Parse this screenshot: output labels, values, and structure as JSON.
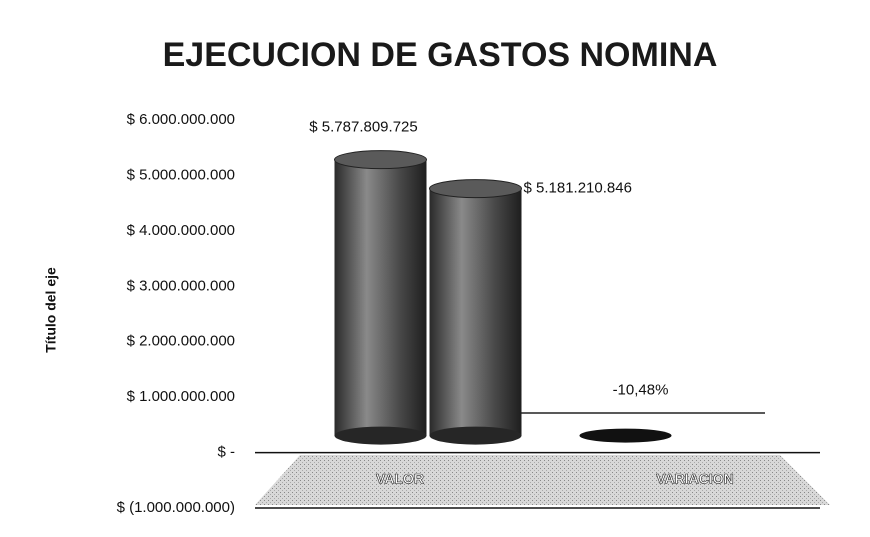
{
  "chart_data": {
    "type": "bar3d",
    "title": "EJECUCION DE GASTOS NOMINA",
    "y_label": "Título del eje",
    "categories": [
      "VALOR",
      "VARIACION"
    ],
    "series": [
      {
        "color": "#3a3a3a",
        "values": [
          5787809725,
          -0.1048
        ],
        "value_labels": [
          "$ 5.787.809.725",
          "-10,48%"
        ]
      },
      {
        "color": "#3a3a3a",
        "values": [
          5181210846,
          null
        ],
        "value_labels": [
          "$ 5.181.210.846",
          null
        ]
      }
    ],
    "ylim": [
      -1000000000,
      6000000000
    ],
    "yticks": [
      {
        "value": -1000000000,
        "label": "$ (1.000.000.000)"
      },
      {
        "value": 0,
        "label": "$ -"
      },
      {
        "value": 1000000000,
        "label": "$ 1.000.000.000"
      },
      {
        "value": 2000000000,
        "label": "$ 2.000.000.000"
      },
      {
        "value": 3000000000,
        "label": "$ 3.000.000.000"
      },
      {
        "value": 4000000000,
        "label": "$ 4.000.000.000"
      },
      {
        "value": 5000000000,
        "label": "$ 5.000.000.000"
      },
      {
        "value": 6000000000,
        "label": "$ 6.000.000.000"
      }
    ],
    "grid": false
  }
}
